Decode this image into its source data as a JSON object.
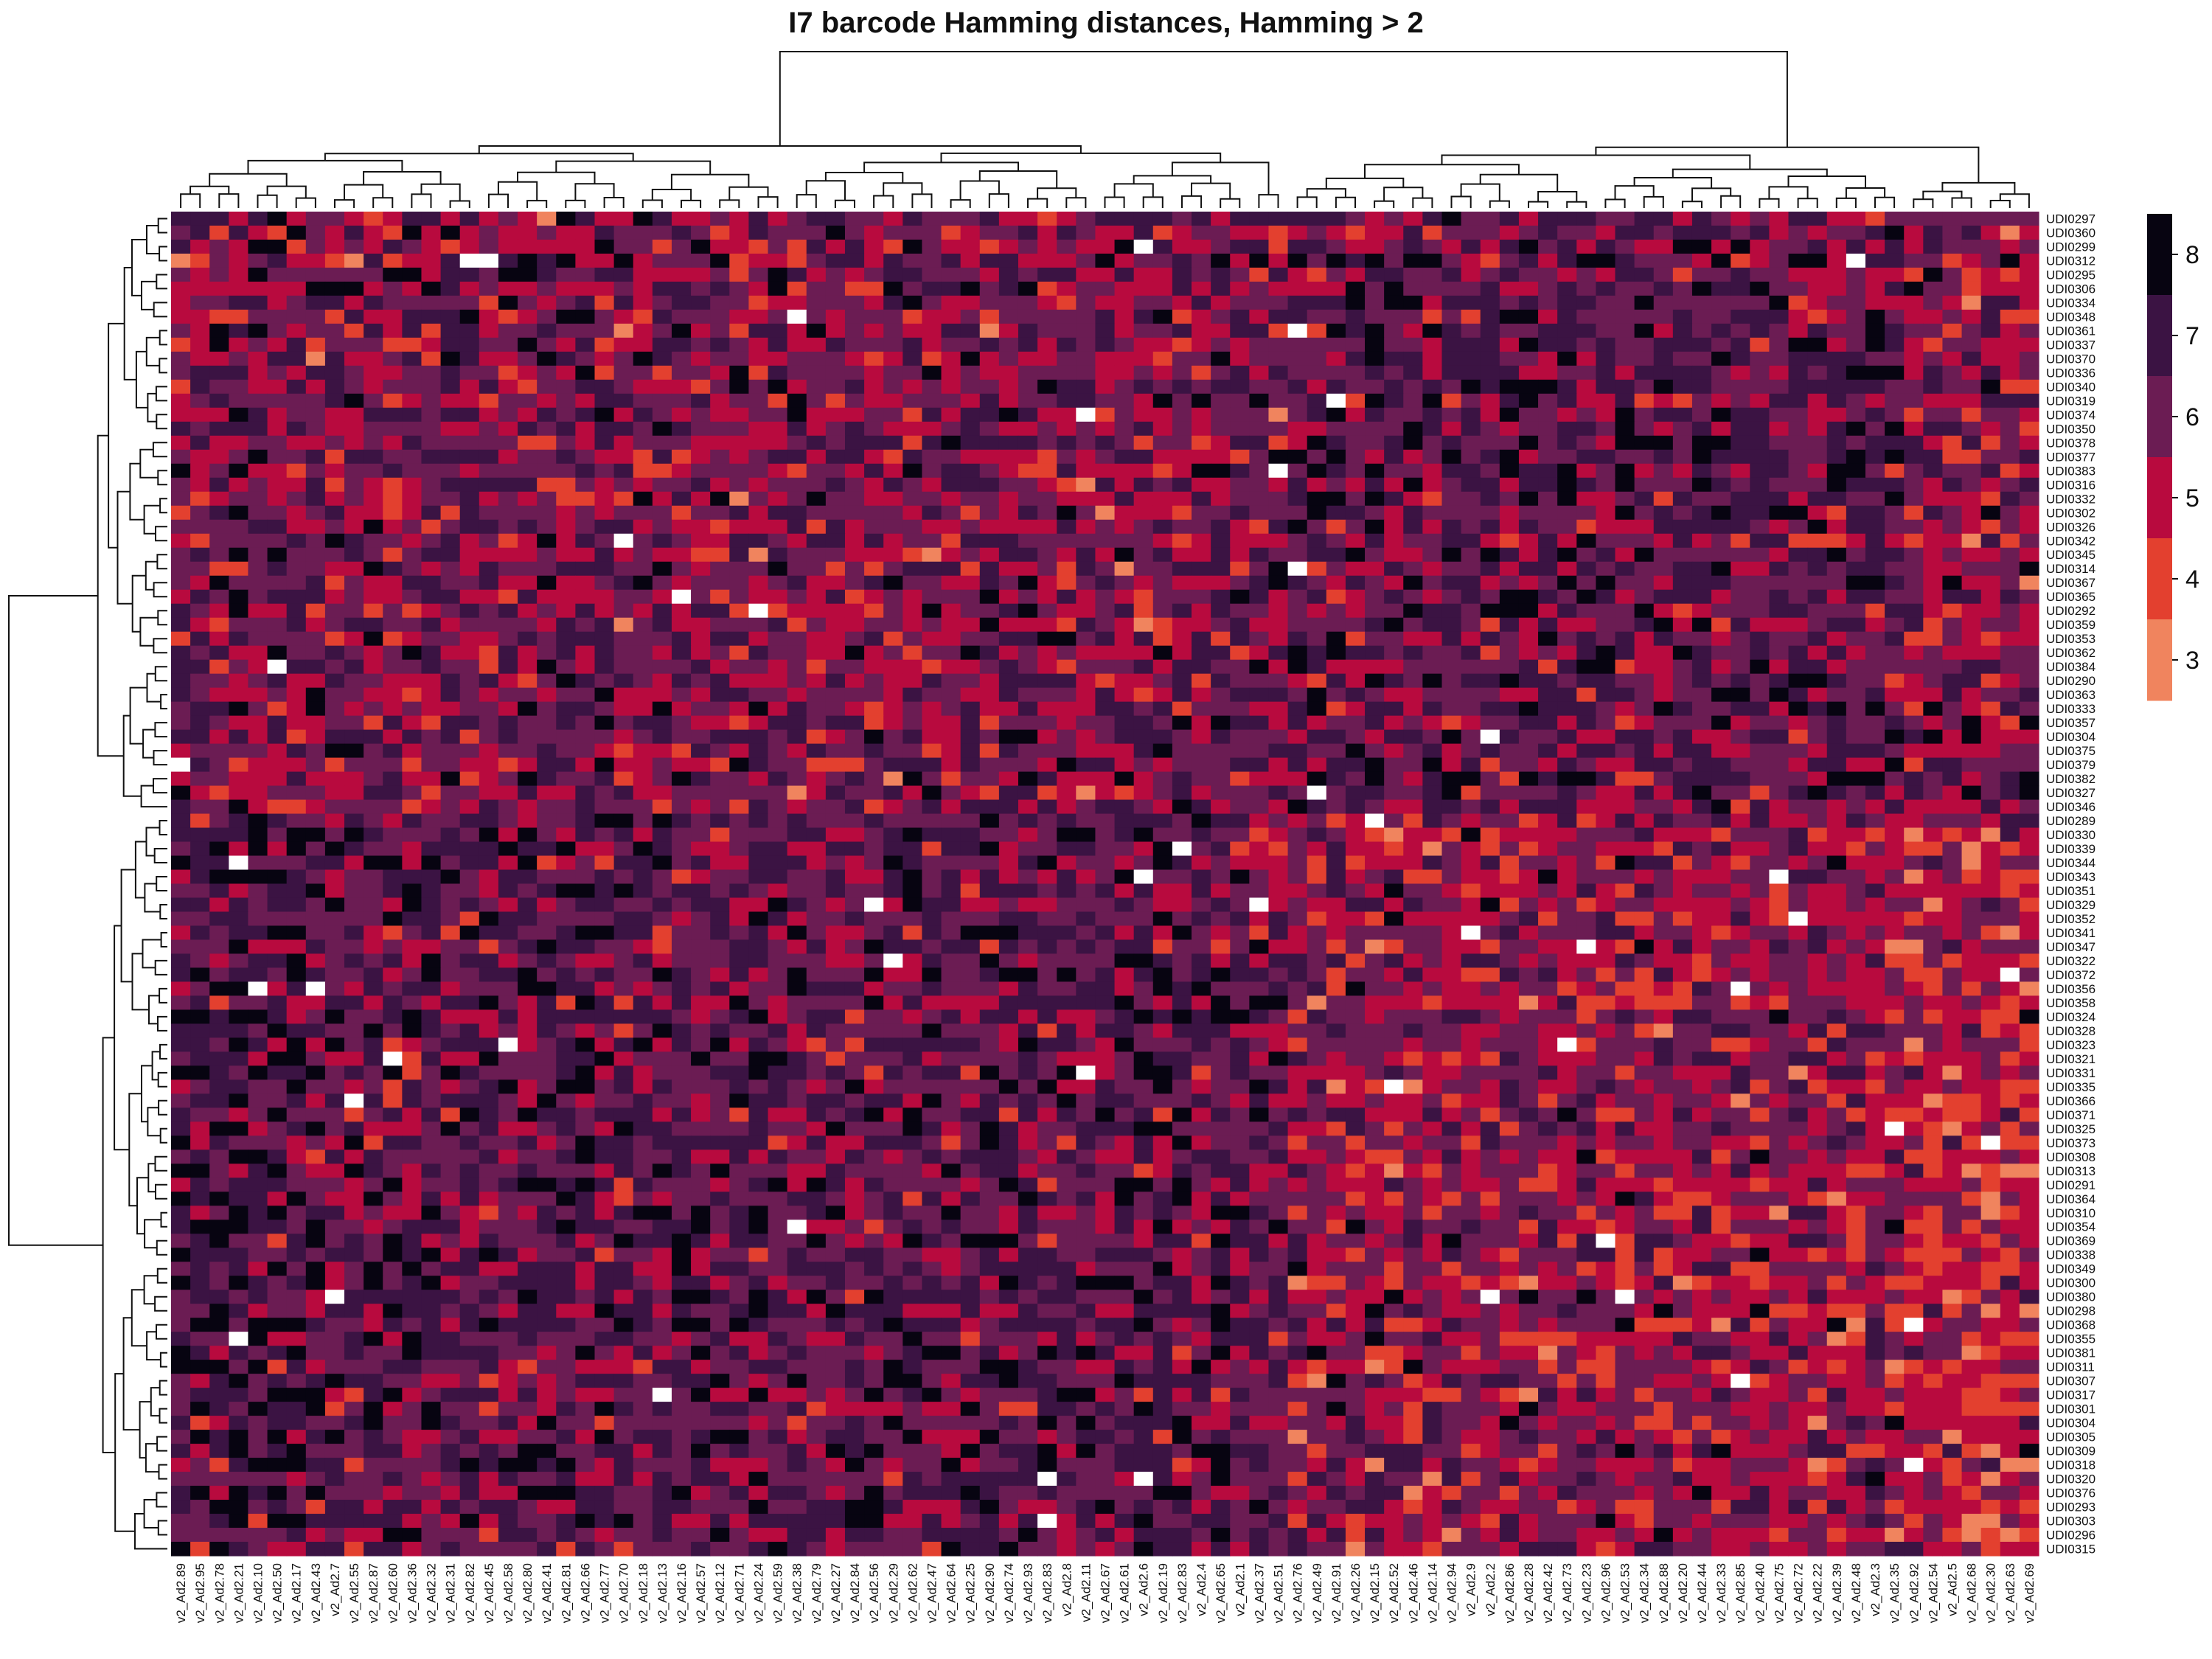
{
  "chart_data": {
    "type": "heatmap",
    "title": "I7 barcode Hamming distances, Hamming > 2",
    "xlabel": "",
    "ylabel": "",
    "column_labels": [
      "v2_Ad2.89",
      "v2_Ad2.95",
      "v2_Ad2.78",
      "v2_Ad2.21",
      "v2_Ad2.10",
      "v2_Ad2.50",
      "v2_Ad2.17",
      "v2_Ad2.43",
      "v2_Ad2.7",
      "v2_Ad2.55",
      "v2_Ad2.87",
      "v2_Ad2.60",
      "v2_Ad2.36",
      "v2_Ad2.32",
      "v2_Ad2.31",
      "v2_Ad2.82",
      "v2_Ad2.45",
      "v2_Ad2.58",
      "v2_Ad2.80",
      "v2_Ad2.41",
      "v2_Ad2.81",
      "v2_Ad2.66",
      "v2_Ad2.77",
      "v2_Ad2.70",
      "v2_Ad2.18",
      "v2_Ad2.13",
      "v2_Ad2.16",
      "v2_Ad2.57",
      "v2_Ad2.12",
      "v2_Ad2.71",
      "v2_Ad2.24",
      "v2_Ad2.59",
      "v2_Ad2.38",
      "v2_Ad2.79",
      "v2_Ad2.27",
      "v2_Ad2.84",
      "v2_Ad2.56",
      "v2_Ad2.29",
      "v2_Ad2.62",
      "v2_Ad2.47",
      "v2_Ad2.64",
      "v2_Ad2.25",
      "v2_Ad2.90",
      "v2_Ad2.74",
      "v2_Ad2.93",
      "v2_Ad2.83",
      "v2_Ad2.8",
      "v2_Ad2.11",
      "v2_Ad2.67",
      "v2_Ad2.61",
      "v2_Ad2.6",
      "v2_Ad2.19",
      "v2_Ad2.83",
      "v2_Ad2.4",
      "v2_Ad2.65",
      "v2_Ad2.1",
      "v2_Ad2.37",
      "v2_Ad2.51",
      "v2_Ad2.76",
      "v2_Ad2.49",
      "v2_Ad2.91",
      "v2_Ad2.26",
      "v2_Ad2.15",
      "v2_Ad2.52",
      "v2_Ad2.46",
      "v2_Ad2.14",
      "v2_Ad2.94",
      "v2_Ad2.9",
      "v2_Ad2.2",
      "v2_Ad2.86",
      "v2_Ad2.28",
      "v2_Ad2.42",
      "v2_Ad2.73",
      "v2_Ad2.23",
      "v2_Ad2.96",
      "v2_Ad2.53",
      "v2_Ad2.34",
      "v2_Ad2.88",
      "v2_Ad2.20",
      "v2_Ad2.44",
      "v2_Ad2.33",
      "v2_Ad2.85",
      "v2_Ad2.40",
      "v2_Ad2.75",
      "v2_Ad2.72",
      "v2_Ad2.22",
      "v2_Ad2.39",
      "v2_Ad2.48",
      "v2_Ad2.3",
      "v2_Ad2.35",
      "v2_Ad2.92",
      "v2_Ad2.54",
      "v2_Ad2.5",
      "v2_Ad2.68",
      "v2_Ad2.30",
      "v2_Ad2.63",
      "v2_Ad2.69"
    ],
    "row_labels": [
      "UDI0297",
      "UDI0360",
      "UDI0299",
      "UDI0312",
      "UDI0295",
      "UDI0306",
      "UDI0334",
      "UDI0348",
      "UDI0361",
      "UDI0337",
      "UDI0370",
      "UDI0336",
      "UDI0340",
      "UDI0319",
      "UDI0374",
      "UDI0350",
      "UDI0378",
      "UDI0377",
      "UDI0383",
      "UDI0316",
      "UDI0332",
      "UDI0302",
      "UDI0326",
      "UDI0342",
      "UDI0345",
      "UDI0314",
      "UDI0367",
      "UDI0365",
      "UDI0292",
      "UDI0359",
      "UDI0353",
      "UDI0362",
      "UDI0384",
      "UDI0290",
      "UDI0363",
      "UDI0333",
      "UDI0357",
      "UDI0304",
      "UDI0375",
      "UDI0379",
      "UDI0382",
      "UDI0327",
      "UDI0346",
      "UDI0289",
      "UDI0330",
      "UDI0339",
      "UDI0344",
      "UDI0343",
      "UDI0351",
      "UDI0329",
      "UDI0352",
      "UDI0341",
      "UDI0347",
      "UDI0322",
      "UDI0372",
      "UDI0356",
      "UDI0358",
      "UDI0324",
      "UDI0328",
      "UDI0323",
      "UDI0321",
      "UDI0331",
      "UDI0335",
      "UDI0366",
      "UDI0371",
      "UDI0325",
      "UDI0373",
      "UDI0308",
      "UDI0313",
      "UDI0291",
      "UDI0364",
      "UDI0310",
      "UDI0354",
      "UDI0369",
      "UDI0338",
      "UDI0349",
      "UDI0300",
      "UDI0380",
      "UDI0298",
      "UDI0368",
      "UDI0355",
      "UDI0381",
      "UDI0311",
      "UDI0307",
      "UDI0317",
      "UDI0301",
      "UDI0304",
      "UDI0305",
      "UDI0309",
      "UDI0318",
      "UDI0320",
      "UDI0376",
      "UDI0293",
      "UDI0303",
      "UDI0296",
      "UDI0315"
    ],
    "value_range": [
      3,
      8
    ],
    "colorbar_ticks": [
      3,
      4,
      5,
      6,
      7,
      8
    ],
    "colorbar_colors": [
      "#f0845e",
      "#e3402f",
      "#b80a3e",
      "#6b1c53",
      "#3b1343",
      "#070411"
    ],
    "low_value_color": "#ffffff",
    "legend_position": "right",
    "dendrograms": [
      "top",
      "left"
    ]
  }
}
